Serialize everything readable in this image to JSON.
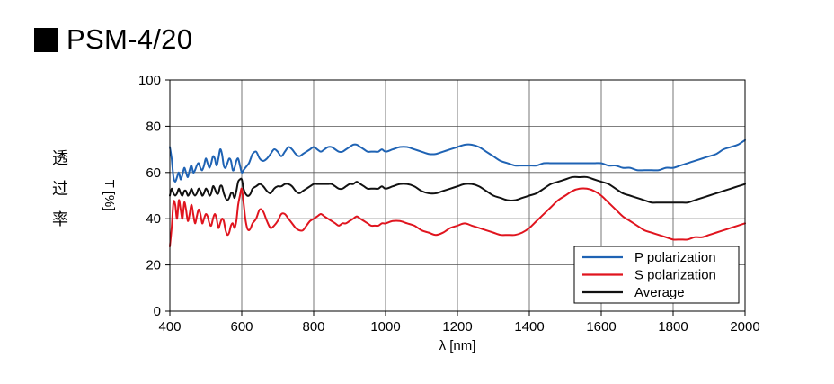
{
  "heading": {
    "title": "PSM-4/20",
    "square_icon": "black-square-icon"
  },
  "side_label": [
    "透",
    "过",
    "率"
  ],
  "chart_data": {
    "type": "line",
    "title": "PSM-4/20",
    "xlabel": "λ [nm]",
    "ylabel": "T [%]",
    "xlim": [
      400,
      2000
    ],
    "ylim": [
      0,
      100
    ],
    "xticks": [
      400,
      600,
      800,
      1000,
      1200,
      1400,
      1600,
      1800,
      2000
    ],
    "yticks": [
      0,
      20,
      40,
      60,
      80,
      100
    ],
    "grid": true,
    "legend_position": "bottom-right",
    "series": [
      {
        "name": "P polarization",
        "color": "#1f63b4",
        "x": [
          400,
          405,
          410,
          415,
          420,
          425,
          430,
          435,
          440,
          445,
          450,
          455,
          460,
          465,
          470,
          475,
          480,
          485,
          490,
          495,
          500,
          505,
          510,
          515,
          520,
          525,
          530,
          535,
          540,
          545,
          550,
          555,
          560,
          565,
          570,
          575,
          580,
          585,
          590,
          595,
          600,
          605,
          610,
          615,
          620,
          625,
          630,
          640,
          650,
          660,
          670,
          680,
          690,
          700,
          710,
          720,
          730,
          740,
          750,
          760,
          770,
          780,
          790,
          800,
          810,
          820,
          830,
          840,
          850,
          860,
          870,
          880,
          890,
          900,
          910,
          920,
          930,
          940,
          950,
          960,
          970,
          980,
          990,
          1000,
          1020,
          1040,
          1060,
          1080,
          1100,
          1120,
          1140,
          1160,
          1180,
          1200,
          1220,
          1240,
          1260,
          1280,
          1300,
          1320,
          1340,
          1360,
          1380,
          1400,
          1420,
          1440,
          1460,
          1480,
          1500,
          1520,
          1540,
          1560,
          1580,
          1600,
          1620,
          1640,
          1660,
          1680,
          1700,
          1720,
          1740,
          1760,
          1780,
          1800,
          1820,
          1840,
          1860,
          1880,
          1900,
          1920,
          1940,
          1960,
          1980,
          2000
        ],
        "y": [
          71,
          66,
          58,
          56,
          58,
          60,
          57,
          59,
          62,
          60,
          58,
          61,
          63,
          60,
          61,
          63,
          64,
          62,
          61,
          63,
          66,
          64,
          62,
          64,
          67,
          66,
          63,
          66,
          70,
          68,
          63,
          62,
          64,
          66,
          65,
          61,
          62,
          65,
          66,
          63,
          60,
          61,
          62,
          63,
          64,
          66,
          68,
          69,
          66,
          65,
          66,
          68,
          70,
          69,
          67,
          69,
          71,
          70,
          68,
          67,
          68,
          69,
          70,
          71,
          70,
          69,
          70,
          71,
          71,
          70,
          69,
          69,
          70,
          71,
          72,
          72,
          71,
          70,
          69,
          69,
          69,
          69,
          70,
          69,
          70,
          71,
          71,
          70,
          69,
          68,
          68,
          69,
          70,
          71,
          72,
          72,
          71,
          69,
          67,
          65,
          64,
          63,
          63,
          63,
          63,
          64,
          64,
          64,
          64,
          64,
          64,
          64,
          64,
          64,
          63,
          63,
          62,
          62,
          61,
          61,
          61,
          61,
          62,
          62,
          63,
          64,
          65,
          66,
          67,
          68,
          70,
          71,
          72,
          74
        ]
      },
      {
        "name": "S polarization",
        "color": "#e0141e",
        "x": [
          400,
          405,
          410,
          415,
          420,
          425,
          430,
          435,
          440,
          445,
          450,
          455,
          460,
          465,
          470,
          475,
          480,
          485,
          490,
          495,
          500,
          505,
          510,
          515,
          520,
          525,
          530,
          535,
          540,
          545,
          550,
          555,
          560,
          565,
          570,
          575,
          580,
          585,
          590,
          595,
          600,
          605,
          610,
          615,
          620,
          625,
          630,
          640,
          650,
          660,
          670,
          680,
          690,
          700,
          710,
          720,
          730,
          740,
          750,
          760,
          770,
          780,
          790,
          800,
          810,
          820,
          830,
          840,
          850,
          860,
          870,
          880,
          890,
          900,
          910,
          920,
          930,
          940,
          950,
          960,
          970,
          980,
          990,
          1000,
          1020,
          1040,
          1060,
          1080,
          1100,
          1120,
          1140,
          1160,
          1180,
          1200,
          1220,
          1240,
          1260,
          1280,
          1300,
          1320,
          1340,
          1360,
          1380,
          1400,
          1420,
          1440,
          1460,
          1480,
          1500,
          1520,
          1540,
          1560,
          1580,
          1600,
          1620,
          1640,
          1660,
          1680,
          1700,
          1720,
          1740,
          1760,
          1780,
          1800,
          1820,
          1840,
          1860,
          1880,
          1900,
          1920,
          1940,
          1960,
          1980,
          2000
        ],
        "y": [
          28,
          36,
          47,
          46,
          40,
          48,
          44,
          40,
          47,
          44,
          39,
          42,
          46,
          42,
          38,
          41,
          44,
          42,
          38,
          40,
          42,
          41,
          38,
          37,
          40,
          42,
          40,
          36,
          38,
          40,
          39,
          35,
          33,
          34,
          37,
          38,
          36,
          39,
          46,
          50,
          53,
          47,
          40,
          36,
          35,
          36,
          38,
          40,
          44,
          43,
          39,
          36,
          37,
          39,
          42,
          42,
          40,
          38,
          36,
          35,
          35,
          37,
          39,
          40,
          41,
          42,
          41,
          40,
          39,
          38,
          37,
          38,
          38,
          39,
          40,
          41,
          40,
          39,
          38,
          37,
          37,
          37,
          38,
          38,
          39,
          39,
          38,
          37,
          35,
          34,
          33,
          34,
          36,
          37,
          38,
          37,
          36,
          35,
          34,
          33,
          33,
          33,
          34,
          36,
          39,
          42,
          45,
          48,
          50,
          52,
          53,
          53,
          52,
          50,
          47,
          44,
          41,
          39,
          37,
          35,
          34,
          33,
          32,
          31,
          31,
          31,
          32,
          32,
          33,
          34,
          35,
          36,
          37,
          38
        ]
      },
      {
        "name": "Average",
        "color": "#111111",
        "x": [
          400,
          405,
          410,
          415,
          420,
          425,
          430,
          435,
          440,
          445,
          450,
          455,
          460,
          465,
          470,
          475,
          480,
          485,
          490,
          495,
          500,
          505,
          510,
          515,
          520,
          525,
          530,
          535,
          540,
          545,
          550,
          555,
          560,
          565,
          570,
          575,
          580,
          585,
          590,
          595,
          600,
          605,
          610,
          615,
          620,
          625,
          630,
          640,
          650,
          660,
          670,
          680,
          690,
          700,
          710,
          720,
          730,
          740,
          750,
          760,
          770,
          780,
          790,
          800,
          810,
          820,
          830,
          840,
          850,
          860,
          870,
          880,
          890,
          900,
          910,
          920,
          930,
          940,
          950,
          960,
          970,
          980,
          990,
          1000,
          1020,
          1040,
          1060,
          1080,
          1100,
          1120,
          1140,
          1160,
          1180,
          1200,
          1220,
          1240,
          1260,
          1280,
          1300,
          1320,
          1340,
          1360,
          1380,
          1400,
          1420,
          1440,
          1460,
          1480,
          1500,
          1520,
          1540,
          1560,
          1580,
          1600,
          1620,
          1640,
          1660,
          1680,
          1700,
          1720,
          1740,
          1760,
          1780,
          1800,
          1820,
          1840,
          1860,
          1880,
          1900,
          1920,
          1940,
          1960,
          1980,
          2000
        ],
        "y": [
          50,
          53,
          51,
          50,
          51,
          53,
          51,
          50,
          52,
          52,
          50,
          51,
          53,
          51,
          50,
          51,
          53,
          52,
          50,
          51,
          53,
          52,
          50,
          51,
          54,
          53,
          51,
          51,
          54,
          54,
          51,
          49,
          48,
          49,
          51,
          51,
          49,
          52,
          56,
          57,
          57,
          53,
          51,
          50,
          50,
          51,
          53,
          54,
          55,
          54,
          52,
          51,
          53,
          54,
          54,
          55,
          55,
          54,
          52,
          51,
          52,
          53,
          54,
          55,
          55,
          55,
          55,
          55,
          55,
          54,
          53,
          53,
          54,
          55,
          55,
          56,
          55,
          54,
          53,
          53,
          53,
          53,
          54,
          53,
          54,
          55,
          55,
          54,
          52,
          51,
          51,
          52,
          53,
          54,
          55,
          55,
          54,
          52,
          50,
          49,
          48,
          48,
          49,
          50,
          51,
          53,
          55,
          56,
          57,
          58,
          58,
          58,
          57,
          56,
          55,
          53,
          51,
          50,
          49,
          48,
          47,
          47,
          47,
          47,
          47,
          47,
          48,
          49,
          50,
          51,
          52,
          53,
          54,
          55
        ]
      }
    ]
  }
}
